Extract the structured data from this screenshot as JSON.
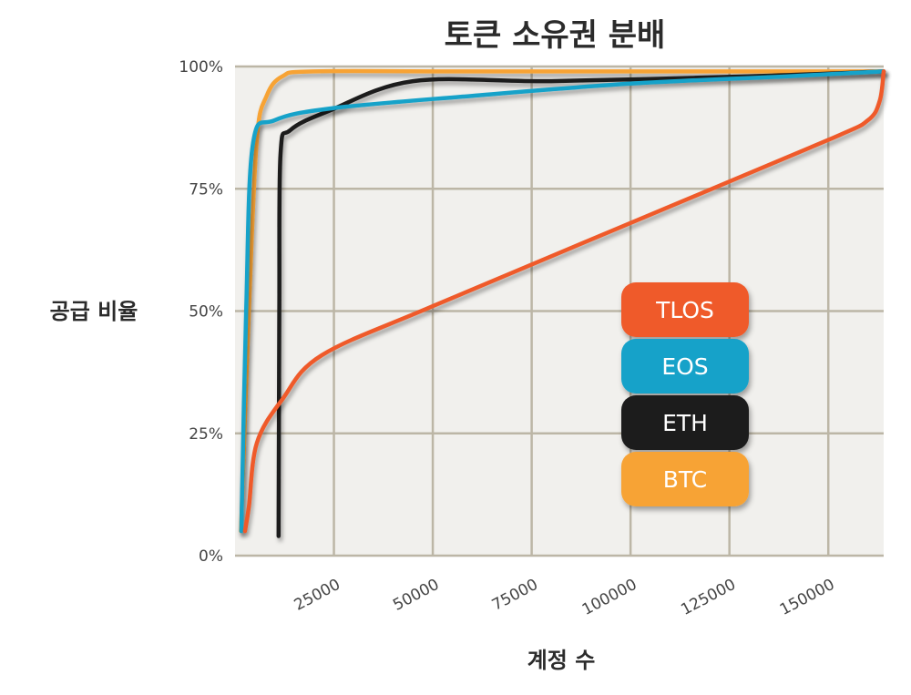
{
  "chart_data": {
    "type": "line",
    "title": "토큰 소유권 분배",
    "xlabel": "계정 수",
    "ylabel": "공급 비율",
    "xlim": [
      0,
      164000
    ],
    "ylim": [
      0,
      100
    ],
    "x_ticks": [
      25000,
      50000,
      75000,
      100000,
      125000,
      150000
    ],
    "y_ticks": [
      0,
      25,
      50,
      75,
      100
    ],
    "y_tick_labels": [
      "0%",
      "25%",
      "50%",
      "75%",
      "100%"
    ],
    "grid": true,
    "legend_position": "center-right",
    "series": [
      {
        "name": "BTC",
        "color": "#f7a334",
        "points": [
          [
            1500,
            5
          ],
          [
            3500,
            50
          ],
          [
            5500,
            85
          ],
          [
            8000,
            94
          ],
          [
            12000,
            98
          ],
          [
            20000,
            99
          ],
          [
            60000,
            99
          ],
          [
            164000,
            99
          ]
        ]
      },
      {
        "name": "ETH",
        "color": "#1e1e1e",
        "points": [
          [
            11000,
            4
          ],
          [
            11200,
            50
          ],
          [
            11500,
            82
          ],
          [
            14000,
            87
          ],
          [
            24000,
            91
          ],
          [
            45000,
            97
          ],
          [
            80000,
            97
          ],
          [
            130000,
            98
          ],
          [
            164000,
            99
          ]
        ]
      },
      {
        "name": "EOS",
        "color": "#14a2c9",
        "points": [
          [
            1600,
            5
          ],
          [
            2800,
            50
          ],
          [
            4500,
            84
          ],
          [
            10000,
            89
          ],
          [
            25000,
            91.5
          ],
          [
            60000,
            94
          ],
          [
            100000,
            96.5
          ],
          [
            140000,
            98
          ],
          [
            164000,
            99
          ]
        ]
      },
      {
        "name": "TLOS",
        "color": "#ef5a2a",
        "points": [
          [
            2500,
            5
          ],
          [
            3500,
            10
          ],
          [
            5500,
            23
          ],
          [
            12000,
            32
          ],
          [
            22000,
            41
          ],
          [
            50000,
            51
          ],
          [
            100000,
            68
          ],
          [
            150000,
            85
          ],
          [
            160000,
            89
          ],
          [
            163000,
            93
          ],
          [
            164000,
            99
          ]
        ]
      }
    ]
  }
}
